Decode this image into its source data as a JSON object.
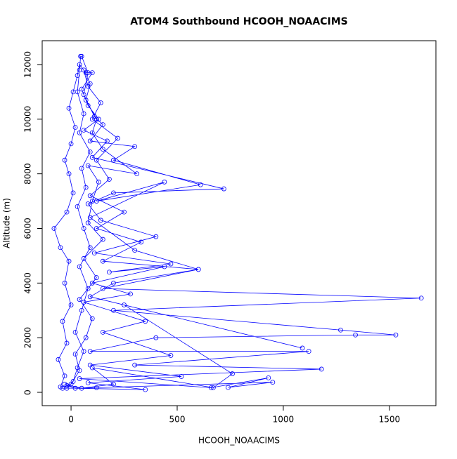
{
  "chart_data": {
    "type": "line",
    "title": "ATOM4 Southbound HCOOH_NOAACIMS",
    "xlabel": "HCOOH_NOAACIMS",
    "ylabel": "Altitude (m)",
    "color": "#0000ff",
    "xlim": [
      -136,
      1719
    ],
    "ylim": [
      -488,
      12873
    ],
    "xticks": [
      0,
      500,
      1000,
      1500
    ],
    "yticks": [
      0,
      2000,
      4000,
      6000,
      8000,
      10000,
      12000
    ],
    "x": [
      -20,
      10,
      30,
      60,
      20,
      50,
      80,
      40,
      90,
      60,
      30,
      70,
      50,
      90,
      40,
      60,
      30,
      40,
      45,
      50,
      80,
      60,
      110,
      150,
      90,
      300,
      200,
      610,
      120,
      440,
      90,
      300,
      600,
      150,
      1650,
      200,
      1270,
      1530,
      1340,
      400,
      90,
      1120,
      300,
      1180,
      40,
      660,
      930,
      740,
      950,
      120,
      -40,
      -50,
      -30,
      -60,
      -20,
      -40,
      0,
      -30,
      -10,
      -50,
      -80,
      -20,
      10,
      -10,
      -30,
      0,
      20,
      -10,
      10,
      30,
      40,
      70,
      100,
      50,
      80,
      130,
      60,
      170,
      100,
      720,
      200,
      80,
      140,
      400,
      110,
      470,
      180,
      440,
      100,
      280,
      60,
      350,
      150,
      470,
      90,
      520,
      80,
      350,
      20,
      -20,
      0,
      40,
      20,
      70,
      100,
      40,
      120,
      60,
      150,
      80,
      100,
      130,
      80,
      310,
      150,
      100,
      120,
      70,
      90,
      60,
      80,
      140,
      100,
      220,
      120,
      180,
      90,
      250,
      120,
      330,
      150,
      600,
      200,
      90,
      1090,
      250,
      760,
      670,
      100,
      200,
      50,
      -30
    ],
    "values": [
      150,
      400,
      900,
      1500,
      2200,
      3000,
      3800,
      4600,
      5300,
      6000,
      6800,
      7500,
      8200,
      8800,
      9500,
      10200,
      11000,
      11800,
      12300,
      12300,
      11700,
      10900,
      10100,
      9800,
      9200,
      9000,
      8500,
      7600,
      7000,
      7700,
      6400,
      5200,
      4500,
      3800,
      3450,
      3000,
      2280,
      2100,
      2100,
      2000,
      1500,
      1500,
      1000,
      850,
      500,
      170,
      530,
      180,
      370,
      170,
      150,
      200,
      600,
      1200,
      1800,
      2600,
      3200,
      4000,
      4800,
      5300,
      6000,
      6600,
      7300,
      8000,
      8500,
      9100,
      9700,
      10400,
      11000,
      11600,
      12000,
      11700,
      11700,
      11100,
      10500,
      10000,
      9600,
      9200,
      8600,
      7450,
      7300,
      6900,
      6300,
      5700,
      5100,
      4700,
      4400,
      4600,
      4000,
      3600,
      3300,
      2600,
      2200,
      1350,
      1000,
      580,
      350,
      100,
      150,
      250,
      300,
      800,
      1400,
      2000,
      2700,
      3400,
      4200,
      4900,
      5600,
      6200,
      7000,
      7700,
      8300,
      8000,
      8900,
      9500,
      10000,
      10700,
      11300,
      11800,
      11200,
      10600,
      10000,
      9300,
      8500,
      7800,
      7200,
      6600,
      6000,
      5500,
      4800,
      4500,
      4000,
      3500,
      1620,
      3200,
      680,
      170,
      900,
      300,
      150,
      300
    ]
  }
}
